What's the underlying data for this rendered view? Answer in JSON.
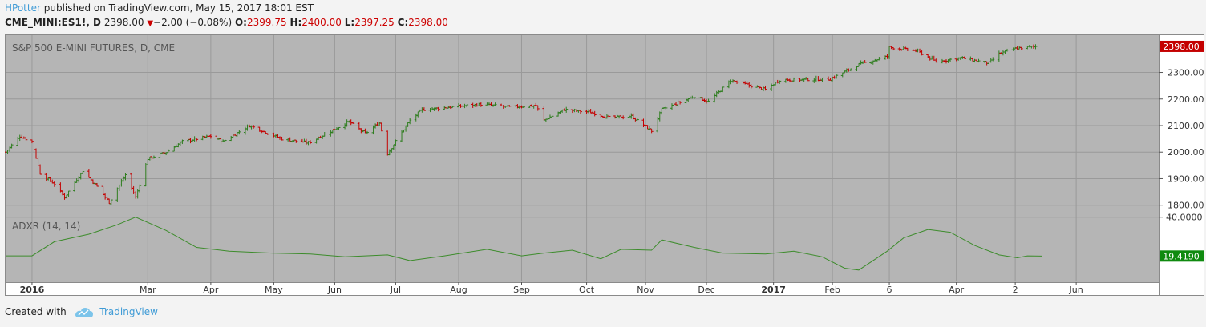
{
  "header": {
    "author": "HPotter",
    "published": "published on TradingView.com, May 15, 2017 18:01 EST",
    "symbol": "CME_MINI:ES1!, D",
    "last": "2398.00",
    "change": "−2.00 (−0.08%)",
    "o_label": "O:",
    "o_val": "2399.75",
    "h_label": "H:",
    "h_val": "2400.00",
    "l_label": "L:",
    "l_val": "2397.25",
    "c_label": "C:",
    "c_val": "2398.00"
  },
  "footer": {
    "created_with": "Created with",
    "brand": "TradingView"
  },
  "colors": {
    "up": "#2e7d1e",
    "down": "#c40000",
    "pane_bg": "#b5b5b5",
    "adx_line": "#3d8c2c",
    "price_badge": "#c40000",
    "adx_badge": "#0f8a0f"
  },
  "chart_data": [
    {
      "type": "ohlc",
      "title": "S&P 500 E-MINI FUTURES, D, CME",
      "ylim": [
        1775,
        2440
      ],
      "yticks": [
        "2300.00",
        "2200.00",
        "2100.00",
        "2000.00",
        "1900.00",
        "1800.00"
      ],
      "ytick_values": [
        2300,
        2200,
        2100,
        2000,
        1900,
        1800
      ],
      "last_value_label": "2398.00",
      "last_value": 2398,
      "x_range": [
        "2015-12-22",
        "2017-07-12"
      ],
      "xticks": [
        {
          "label": "2016",
          "date": "2016-01-04",
          "bold": true
        },
        {
          "label": "Mar",
          "date": "2016-03-01"
        },
        {
          "label": "Apr",
          "date": "2016-04-01"
        },
        {
          "label": "May",
          "date": "2016-05-02"
        },
        {
          "label": "Jun",
          "date": "2016-06-01"
        },
        {
          "label": "Jul",
          "date": "2016-07-01"
        },
        {
          "label": "Aug",
          "date": "2016-08-01"
        },
        {
          "label": "Sep",
          "date": "2016-09-01"
        },
        {
          "label": "Oct",
          "date": "2016-10-03"
        },
        {
          "label": "Nov",
          "date": "2016-11-01"
        },
        {
          "label": "Dec",
          "date": "2016-12-01"
        },
        {
          "label": "2017",
          "date": "2017-01-03",
          "bold": true
        },
        {
          "label": "Feb",
          "date": "2017-02-01"
        },
        {
          "label": "6",
          "date": "2017-03-01"
        },
        {
          "label": "Apr",
          "date": "2017-04-03"
        },
        {
          "label": "2",
          "date": "2017-05-02"
        },
        {
          "label": "Jun",
          "date": "2017-06-01"
        }
      ],
      "close_path": [
        [
          "2015-12-22",
          2000
        ],
        [
          "2015-12-29",
          2060
        ],
        [
          "2016-01-04",
          2040
        ],
        [
          "2016-01-08",
          1920
        ],
        [
          "2016-01-15",
          1880
        ],
        [
          "2016-01-20",
          1830
        ],
        [
          "2016-01-29",
          1930
        ],
        [
          "2016-02-05",
          1870
        ],
        [
          "2016-02-11",
          1810
        ],
        [
          "2016-02-19",
          1915
        ],
        [
          "2016-02-24",
          1830
        ],
        [
          "2016-03-01",
          1975
        ],
        [
          "2016-03-10",
          2000
        ],
        [
          "2016-03-18",
          2040
        ],
        [
          "2016-04-01",
          2060
        ],
        [
          "2016-04-07",
          2040
        ],
        [
          "2016-04-20",
          2100
        ],
        [
          "2016-05-06",
          2050
        ],
        [
          "2016-05-19",
          2035
        ],
        [
          "2016-06-08",
          2115
        ],
        [
          "2016-06-16",
          2070
        ],
        [
          "2016-06-23",
          2110
        ],
        [
          "2016-06-27",
          1995
        ],
        [
          "2016-07-08",
          2120
        ],
        [
          "2016-07-14",
          2160
        ],
        [
          "2016-08-12",
          2180
        ],
        [
          "2016-08-26",
          2170
        ],
        [
          "2016-09-08",
          2175
        ],
        [
          "2016-09-12",
          2120
        ],
        [
          "2016-09-22",
          2160
        ],
        [
          "2016-10-05",
          2150
        ],
        [
          "2016-10-14",
          2130
        ],
        [
          "2016-10-25",
          2135
        ],
        [
          "2016-11-04",
          2080
        ],
        [
          "2016-11-09",
          2160
        ],
        [
          "2016-11-25",
          2210
        ],
        [
          "2016-12-02",
          2190
        ],
        [
          "2016-12-13",
          2270
        ],
        [
          "2016-12-30",
          2235
        ],
        [
          "2017-01-06",
          2272
        ],
        [
          "2017-01-31",
          2275
        ],
        [
          "2017-02-14",
          2330
        ],
        [
          "2017-02-28",
          2360
        ],
        [
          "2017-03-01",
          2395
        ],
        [
          "2017-03-15",
          2380
        ],
        [
          "2017-03-24",
          2340
        ],
        [
          "2017-04-05",
          2355
        ],
        [
          "2017-04-19",
          2335
        ],
        [
          "2017-04-24",
          2370
        ],
        [
          "2017-05-02",
          2390
        ],
        [
          "2017-05-12",
          2398
        ]
      ]
    },
    {
      "type": "line",
      "title": "ADXR (14, 14)",
      "ylim": [
        6,
        42
      ],
      "yticks": [
        "40.0000"
      ],
      "ytick_values": [
        40
      ],
      "last_value_label": "19.4190",
      "last_value": 19.419,
      "values": [
        [
          "2015-12-22",
          19.5
        ],
        [
          "2016-01-04",
          19.5
        ],
        [
          "2016-01-15",
          27
        ],
        [
          "2016-02-01",
          31
        ],
        [
          "2016-02-15",
          36
        ],
        [
          "2016-02-24",
          40
        ],
        [
          "2016-03-10",
          33
        ],
        [
          "2016-03-25",
          24
        ],
        [
          "2016-04-10",
          22
        ],
        [
          "2016-05-01",
          21
        ],
        [
          "2016-05-20",
          20.5
        ],
        [
          "2016-06-06",
          19
        ],
        [
          "2016-06-16",
          19.5
        ],
        [
          "2016-06-27",
          20
        ],
        [
          "2016-07-08",
          17
        ],
        [
          "2016-07-25",
          19.5
        ],
        [
          "2016-08-15",
          23
        ],
        [
          "2016-09-01",
          19.5
        ],
        [
          "2016-09-12",
          21
        ],
        [
          "2016-09-26",
          22.5
        ],
        [
          "2016-10-10",
          18
        ],
        [
          "2016-10-20",
          23
        ],
        [
          "2016-11-04",
          22.5
        ],
        [
          "2016-11-09",
          28
        ],
        [
          "2016-11-25",
          24
        ],
        [
          "2016-12-09",
          21
        ],
        [
          "2016-12-30",
          20.5
        ],
        [
          "2017-01-13",
          22
        ],
        [
          "2017-01-27",
          19
        ],
        [
          "2017-02-07",
          13
        ],
        [
          "2017-02-14",
          12
        ],
        [
          "2017-02-28",
          22
        ],
        [
          "2017-03-08",
          29
        ],
        [
          "2017-03-20",
          33.5
        ],
        [
          "2017-03-31",
          32
        ],
        [
          "2017-04-12",
          25
        ],
        [
          "2017-04-24",
          20
        ],
        [
          "2017-05-03",
          18.5
        ],
        [
          "2017-05-08",
          19.5
        ],
        [
          "2017-05-15",
          19.4
        ]
      ]
    }
  ]
}
